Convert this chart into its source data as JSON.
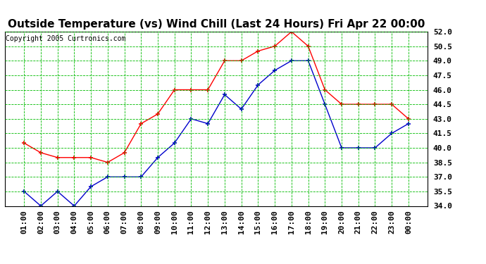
{
  "title": "Outside Temperature (vs) Wind Chill (Last 24 Hours) Fri Apr 22 00:00",
  "copyright": "Copyright 2005 Curtronics.com",
  "x_labels": [
    "01:00",
    "02:00",
    "03:00",
    "04:00",
    "05:00",
    "06:00",
    "07:00",
    "08:00",
    "09:00",
    "10:00",
    "11:00",
    "12:00",
    "13:00",
    "14:00",
    "15:00",
    "16:00",
    "17:00",
    "18:00",
    "19:00",
    "20:00",
    "21:00",
    "22:00",
    "23:00",
    "00:00"
  ],
  "outside_temp": [
    40.5,
    39.5,
    39.0,
    39.0,
    39.0,
    38.5,
    39.5,
    42.5,
    43.5,
    46.0,
    46.0,
    46.0,
    49.0,
    49.0,
    50.0,
    50.5,
    52.0,
    50.5,
    46.0,
    44.5,
    44.5,
    44.5,
    44.5,
    43.0
  ],
  "wind_chill": [
    35.5,
    34.0,
    35.5,
    34.0,
    36.0,
    37.0,
    37.0,
    37.0,
    39.0,
    40.5,
    43.0,
    42.5,
    45.5,
    44.0,
    46.5,
    48.0,
    49.0,
    49.0,
    44.5,
    40.0,
    40.0,
    40.0,
    41.5,
    42.5
  ],
  "temp_color": "#ff0000",
  "chill_color": "#0000cc",
  "bg_color": "#ffffff",
  "plot_bg": "#ffffff",
  "grid_color": "#00bb00",
  "title_fontsize": 11,
  "copyright_fontsize": 7,
  "tick_fontsize": 8,
  "ylim_min": 34.0,
  "ylim_max": 52.0,
  "ytick_step": 1.5
}
